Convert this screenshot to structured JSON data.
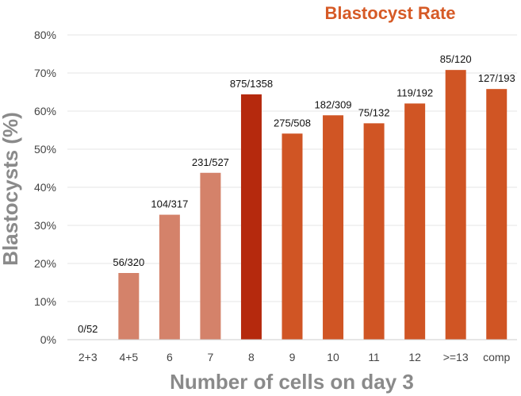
{
  "chart_data": {
    "type": "bar",
    "title": "Blastocyst Rate",
    "xlabel": "Number of cells on day 3",
    "ylabel": "Blastocysts (%)",
    "ylim": [
      0,
      80
    ],
    "y_ticks": [
      0,
      10,
      20,
      30,
      40,
      50,
      60,
      70,
      80
    ],
    "y_tick_labels": [
      "0%",
      "10%",
      "20%",
      "30%",
      "40%",
      "50%",
      "60%",
      "70%",
      "80%"
    ],
    "grid": true,
    "categories": [
      "2+3",
      "4+5",
      "6",
      "7",
      "8",
      "9",
      "10",
      "11",
      "12",
      ">=13",
      "comp"
    ],
    "values": [
      0,
      17.5,
      32.8,
      43.8,
      64.4,
      54.1,
      58.9,
      56.8,
      62.0,
      70.8,
      65.8
    ],
    "data_labels": [
      "0/52",
      "56/320",
      "104/317",
      "231/527",
      "875/1358",
      "275/508",
      "182/309",
      "75/132",
      "119/192",
      "85/120",
      "127/193"
    ],
    "bar_colors": [
      "#d4826a",
      "#d4826a",
      "#d4826a",
      "#d4826a",
      "#b5290d",
      "#d05524",
      "#d05524",
      "#d05524",
      "#d05524",
      "#d05524",
      "#d05524"
    ],
    "title_color": "#d65a26"
  }
}
